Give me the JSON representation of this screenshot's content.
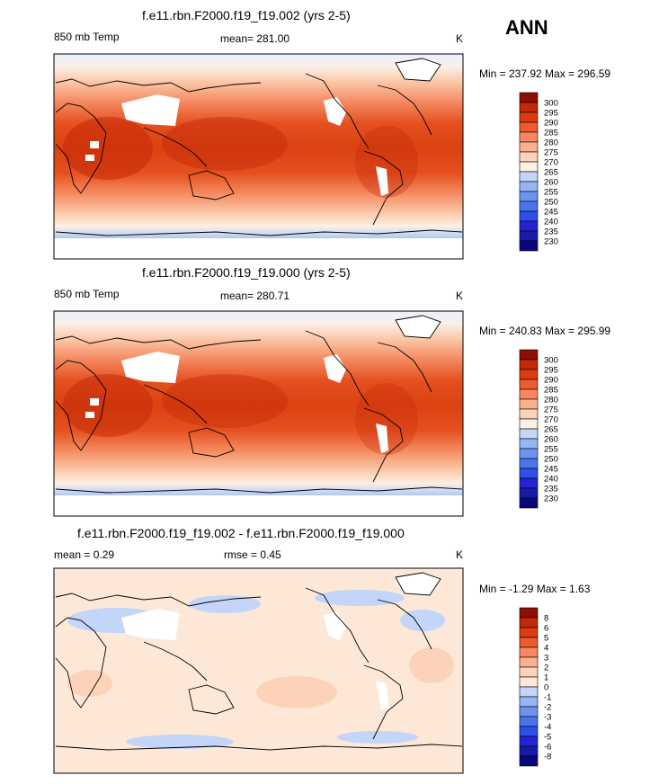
{
  "season": "ANN",
  "panels": [
    {
      "title": "f.e11.rbn.F2000.f19_f19.002 (yrs 2-5)",
      "left_label": "850 mb Temp",
      "center_label": "mean= 281.00",
      "units": "K",
      "minmax": "Min = 237.92 Max = 296.59",
      "colorbar_labels": [
        "300",
        "295",
        "290",
        "285",
        "280",
        "275",
        "270",
        "265",
        "260",
        "255",
        "250",
        "245",
        "240",
        "235",
        "230"
      ]
    },
    {
      "title": "f.e11.rbn.F2000.f19_f19.000 (yrs 2-5)",
      "left_label": "850 mb Temp",
      "center_label": "mean= 280.71",
      "units": "K",
      "minmax": "Min = 240.83 Max = 295.99",
      "colorbar_labels": [
        "300",
        "295",
        "290",
        "285",
        "280",
        "275",
        "270",
        "265",
        "260",
        "255",
        "250",
        "245",
        "240",
        "235",
        "230"
      ]
    },
    {
      "title": "f.e11.rbn.F2000.f19_f19.002 - f.e11.rbn.F2000.f19_f19.000",
      "left_label": "mean =   0.29",
      "center_label": "rmse =   0.45",
      "units": "K",
      "minmax": "Min =  -1.29 Max =   1.63",
      "colorbar_labels": [
        "8",
        "6",
        "5",
        "4",
        "3",
        "2",
        "1",
        "0",
        "-1",
        "-2",
        "-3",
        "-4",
        "-5",
        "-6",
        "-8"
      ]
    }
  ],
  "chart_data": [
    {
      "type": "heatmap",
      "title": "f.e11.rbn.F2000.f19_f19.002 (yrs 2-5)",
      "variable": "850 mb Temp",
      "units": "K",
      "mean": 281.0,
      "min": 237.92,
      "max": 296.59,
      "contour_levels": [
        230,
        235,
        240,
        245,
        250,
        255,
        260,
        265,
        270,
        275,
        280,
        285,
        290,
        295,
        300
      ],
      "level_colors": [
        "#08087a",
        "#1a1aa8",
        "#2424d6",
        "#2e4fe8",
        "#4a74ee",
        "#6d94f0",
        "#97b4f4",
        "#c3d5f8",
        "#fdf0e4",
        "#fcd3b8",
        "#fbb08f",
        "#f88762",
        "#ef5a30",
        "#df3b10",
        "#c42808",
        "#8f0e06"
      ]
    },
    {
      "type": "heatmap",
      "title": "f.e11.rbn.F2000.f19_f19.000 (yrs 2-5)",
      "variable": "850 mb Temp",
      "units": "K",
      "mean": 280.71,
      "min": 240.83,
      "max": 295.99,
      "contour_levels": [
        230,
        235,
        240,
        245,
        250,
        255,
        260,
        265,
        270,
        275,
        280,
        285,
        290,
        295,
        300
      ],
      "level_colors": [
        "#08087a",
        "#1a1aa8",
        "#2424d6",
        "#2e4fe8",
        "#4a74ee",
        "#6d94f0",
        "#97b4f4",
        "#c3d5f8",
        "#fdf0e4",
        "#fcd3b8",
        "#fbb08f",
        "#f88762",
        "#ef5a30",
        "#df3b10",
        "#c42808",
        "#8f0e06"
      ]
    },
    {
      "type": "heatmap",
      "title": "f.e11.rbn.F2000.f19_f19.002 - f.e11.rbn.F2000.f19_f19.000",
      "units": "K",
      "mean": 0.29,
      "rmse": 0.45,
      "min": -1.29,
      "max": 1.63,
      "contour_levels": [
        -8,
        -6,
        -5,
        -4,
        -3,
        -2,
        -1,
        0,
        1,
        2,
        3,
        4,
        5,
        6,
        8
      ],
      "level_colors": [
        "#08087a",
        "#1a1aa8",
        "#2424d6",
        "#2e4fe8",
        "#4a74ee",
        "#6d94f0",
        "#97b4f4",
        "#c3d5f8",
        "#fde8d8",
        "#fcd3b8",
        "#fbb08f",
        "#f88762",
        "#ef5a30",
        "#df3b10",
        "#c42808",
        "#8f0e06"
      ]
    }
  ]
}
